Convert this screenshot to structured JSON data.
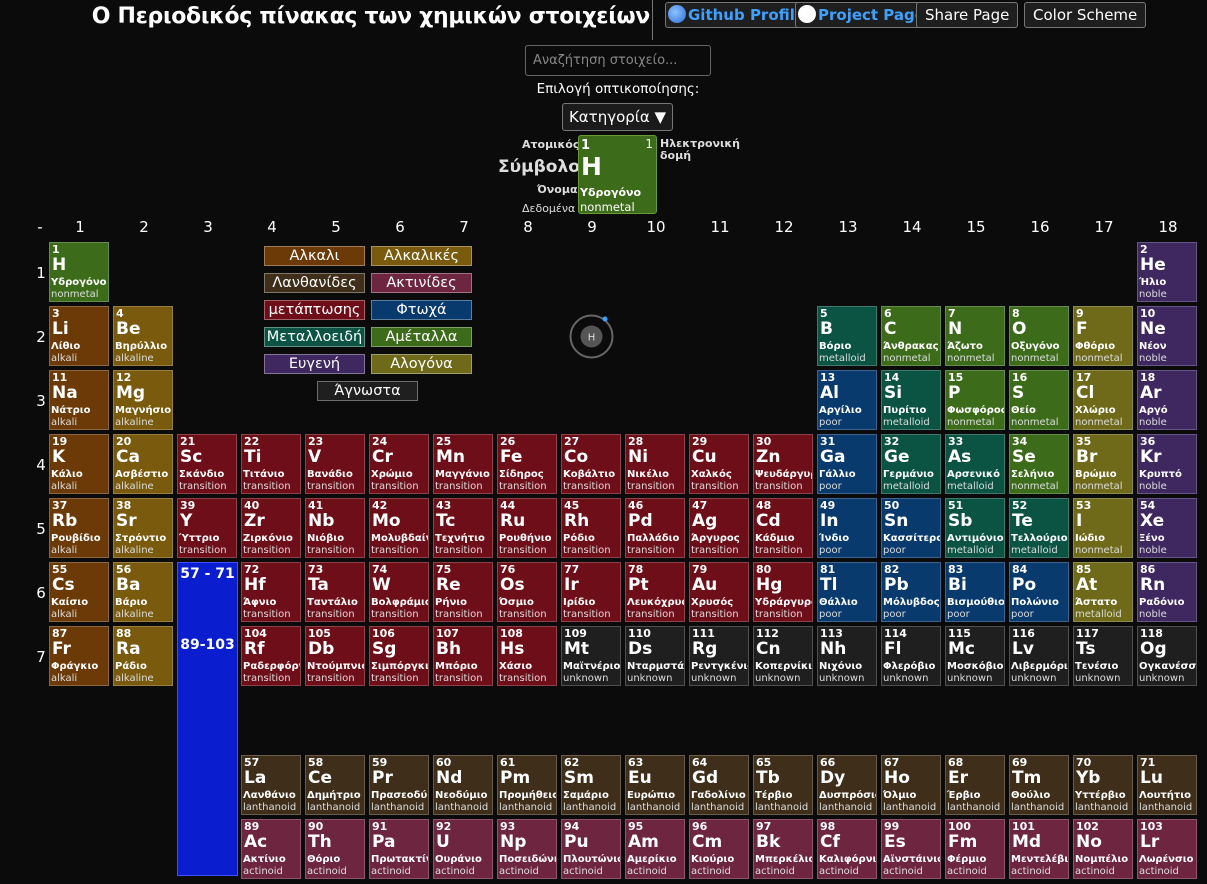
{
  "header": {
    "title": "Ο Περιοδικός πίνακας των χημικών στοιχείων",
    "github_label": "Github Profile",
    "project_label": "Project Page",
    "share_label": "Share Page",
    "scheme_label": "Color Scheme"
  },
  "search": {
    "placeholder": "Αναζήτηση στοιχείο..."
  },
  "viz": {
    "label": "Επιλογή οπτικοποίησης:",
    "selected": "Κατηγορία ▼"
  },
  "legend_key": {
    "atomic_label": "Ατομικός",
    "symbol_label": "Σύμβολο",
    "name_label": "Όνομα",
    "data_label": "Δεδομένα",
    "config_label": "Ηλεκτρονική δομή",
    "number": "1",
    "config_value": "1",
    "symbol": "H",
    "name": "Υδρογόνο",
    "data": "nonmetal"
  },
  "groups": [
    "-",
    "1",
    "2",
    "3",
    "4",
    "5",
    "6",
    "7",
    "8",
    "9",
    "10",
    "11",
    "12",
    "13",
    "14",
    "15",
    "16",
    "17",
    "18"
  ],
  "periods": [
    "1",
    "2",
    "3",
    "4",
    "5",
    "6",
    "7"
  ],
  "fblock": {
    "lanthanide_range": "57 - 71",
    "actinide_range": "89-103"
  },
  "atom_symbol": "H",
  "colors": {
    "alkali": "#6b3a06",
    "alkaline": "#7a5a0c",
    "transition": "#6e0e18",
    "poor": "#083a6e",
    "metalloid": "#0b5443",
    "nonmetal": "#3c6b1a",
    "noble": "#3f2860",
    "lanthanoid": "#3e2e1a",
    "actinoid": "#6e2540",
    "unknown": "#1f1f1f",
    "halogen": "#6e6a1a"
  },
  "categories": [
    {
      "label": "Αλκαλι",
      "key": "alkali"
    },
    {
      "label": "Αλκαλικές",
      "key": "alkaline"
    },
    {
      "label": "Λανθανίδες",
      "key": "lanthanoid"
    },
    {
      "label": "Ακτινίδες",
      "key": "actinoid"
    },
    {
      "label": "μετάπτωσης",
      "key": "transition"
    },
    {
      "label": "Φτωχά",
      "key": "poor"
    },
    {
      "label": "Μεταλλοειδή",
      "key": "metalloid"
    },
    {
      "label": "Αμέταλλα",
      "key": "nonmetal"
    },
    {
      "label": "Ευγενή",
      "key": "noble"
    },
    {
      "label": "Αλογόνα",
      "key": "halogen"
    },
    {
      "label": "Άγνωστα",
      "key": "unknown"
    }
  ],
  "elements": [
    {
      "n": "1",
      "s": "H",
      "name": "Υδρογόνο",
      "cat": "nonmetal",
      "row": 1,
      "col": 1
    },
    {
      "n": "2",
      "s": "He",
      "name": "Ήλιο",
      "cat": "noble",
      "row": 1,
      "col": 18
    },
    {
      "n": "3",
      "s": "Li",
      "name": "Λίθιο",
      "cat": "alkali",
      "row": 2,
      "col": 1
    },
    {
      "n": "4",
      "s": "Be",
      "name": "Βηρύλλιο",
      "cat": "alkaline",
      "row": 2,
      "col": 2
    },
    {
      "n": "5",
      "s": "B",
      "name": "Βόριο",
      "cat": "metalloid",
      "row": 2,
      "col": 13
    },
    {
      "n": "6",
      "s": "C",
      "name": "Άνθρακας",
      "cat": "nonmetal",
      "row": 2,
      "col": 14
    },
    {
      "n": "7",
      "s": "N",
      "name": "Άζωτο",
      "cat": "nonmetal",
      "row": 2,
      "col": 15
    },
    {
      "n": "8",
      "s": "O",
      "name": "Οξυγόνο",
      "cat": "nonmetal",
      "row": 2,
      "col": 16
    },
    {
      "n": "9",
      "s": "F",
      "name": "Φθόριο",
      "cat": "nonmetal",
      "color": "halogen",
      "row": 2,
      "col": 17
    },
    {
      "n": "10",
      "s": "Ne",
      "name": "Νέον",
      "cat": "noble",
      "row": 2,
      "col": 18
    },
    {
      "n": "11",
      "s": "Na",
      "name": "Νάτριο",
      "cat": "alkali",
      "row": 3,
      "col": 1
    },
    {
      "n": "12",
      "s": "Mg",
      "name": "Μαγνήσιο",
      "cat": "alkaline",
      "row": 3,
      "col": 2
    },
    {
      "n": "13",
      "s": "Al",
      "name": "Αργίλιο",
      "cat": "poor",
      "row": 3,
      "col": 13
    },
    {
      "n": "14",
      "s": "Si",
      "name": "Πυρίτιο",
      "cat": "metalloid",
      "row": 3,
      "col": 14
    },
    {
      "n": "15",
      "s": "P",
      "name": "Φωσφόρος",
      "cat": "nonmetal",
      "row": 3,
      "col": 15
    },
    {
      "n": "16",
      "s": "S",
      "name": "Θείο",
      "cat": "nonmetal",
      "row": 3,
      "col": 16
    },
    {
      "n": "17",
      "s": "Cl",
      "name": "Χλώριο",
      "cat": "nonmetal",
      "color": "halogen",
      "row": 3,
      "col": 17
    },
    {
      "n": "18",
      "s": "Ar",
      "name": "Αργό",
      "cat": "noble",
      "row": 3,
      "col": 18
    },
    {
      "n": "19",
      "s": "K",
      "name": "Κάλιο",
      "cat": "alkali",
      "row": 4,
      "col": 1
    },
    {
      "n": "20",
      "s": "Ca",
      "name": "Ασβέστιο",
      "cat": "alkaline",
      "row": 4,
      "col": 2
    },
    {
      "n": "21",
      "s": "Sc",
      "name": "Σκάνδιο",
      "cat": "transition",
      "row": 4,
      "col": 3
    },
    {
      "n": "22",
      "s": "Ti",
      "name": "Τιτάνιο",
      "cat": "transition",
      "row": 4,
      "col": 4
    },
    {
      "n": "23",
      "s": "V",
      "name": "Βανάδιο",
      "cat": "transition",
      "row": 4,
      "col": 5
    },
    {
      "n": "24",
      "s": "Cr",
      "name": "Χρώμιο",
      "cat": "transition",
      "row": 4,
      "col": 6
    },
    {
      "n": "25",
      "s": "Mn",
      "name": "Μαγγάνιο",
      "cat": "transition",
      "row": 4,
      "col": 7
    },
    {
      "n": "26",
      "s": "Fe",
      "name": "Σίδηρος",
      "cat": "transition",
      "row": 4,
      "col": 8
    },
    {
      "n": "27",
      "s": "Co",
      "name": "Κοβάλτιο",
      "cat": "transition",
      "row": 4,
      "col": 9
    },
    {
      "n": "28",
      "s": "Ni",
      "name": "Νικέλιο",
      "cat": "transition",
      "row": 4,
      "col": 10
    },
    {
      "n": "29",
      "s": "Cu",
      "name": "Χαλκός",
      "cat": "transition",
      "row": 4,
      "col": 11
    },
    {
      "n": "30",
      "s": "Zn",
      "name": "Ψευδάργυρος",
      "cat": "transition",
      "row": 4,
      "col": 12
    },
    {
      "n": "31",
      "s": "Ga",
      "name": "Γάλλιο",
      "cat": "poor",
      "row": 4,
      "col": 13
    },
    {
      "n": "32",
      "s": "Ge",
      "name": "Γερμάνιο",
      "cat": "metalloid",
      "row": 4,
      "col": 14
    },
    {
      "n": "33",
      "s": "As",
      "name": "Αρσενικό",
      "cat": "metalloid",
      "row": 4,
      "col": 15
    },
    {
      "n": "34",
      "s": "Se",
      "name": "Σελήνιο",
      "cat": "nonmetal",
      "row": 4,
      "col": 16
    },
    {
      "n": "35",
      "s": "Br",
      "name": "Βρώμιο",
      "cat": "nonmetal",
      "color": "halogen",
      "row": 4,
      "col": 17
    },
    {
      "n": "36",
      "s": "Kr",
      "name": "Κρυπτό",
      "cat": "noble",
      "row": 4,
      "col": 18
    },
    {
      "n": "37",
      "s": "Rb",
      "name": "Ρουβίδιο",
      "cat": "alkali",
      "row": 5,
      "col": 1
    },
    {
      "n": "38",
      "s": "Sr",
      "name": "Στρόντιο",
      "cat": "alkaline",
      "row": 5,
      "col": 2
    },
    {
      "n": "39",
      "s": "Y",
      "name": "Ύττριο",
      "cat": "transition",
      "row": 5,
      "col": 3
    },
    {
      "n": "40",
      "s": "Zr",
      "name": "Ζιρκόνιο",
      "cat": "transition",
      "row": 5,
      "col": 4
    },
    {
      "n": "41",
      "s": "Nb",
      "name": "Νιόβιο",
      "cat": "transition",
      "row": 5,
      "col": 5
    },
    {
      "n": "42",
      "s": "Mo",
      "name": "Μολυβδαίνιο",
      "cat": "transition",
      "row": 5,
      "col": 6
    },
    {
      "n": "43",
      "s": "Tc",
      "name": "Τεχνήτιο",
      "cat": "transition",
      "row": 5,
      "col": 7
    },
    {
      "n": "44",
      "s": "Ru",
      "name": "Ρουθήνιο",
      "cat": "transition",
      "row": 5,
      "col": 8
    },
    {
      "n": "45",
      "s": "Rh",
      "name": "Ρόδιο",
      "cat": "transition",
      "row": 5,
      "col": 9
    },
    {
      "n": "46",
      "s": "Pd",
      "name": "Παλλάδιο",
      "cat": "transition",
      "row": 5,
      "col": 10
    },
    {
      "n": "47",
      "s": "Ag",
      "name": "Άργυρος",
      "cat": "transition",
      "row": 5,
      "col": 11
    },
    {
      "n": "48",
      "s": "Cd",
      "name": "Κάδμιο",
      "cat": "transition",
      "row": 5,
      "col": 12
    },
    {
      "n": "49",
      "s": "In",
      "name": "Ίνδιο",
      "cat": "poor",
      "row": 5,
      "col": 13
    },
    {
      "n": "50",
      "s": "Sn",
      "name": "Κασσίτερος",
      "cat": "poor",
      "row": 5,
      "col": 14
    },
    {
      "n": "51",
      "s": "Sb",
      "name": "Αντιμόνιο",
      "cat": "metalloid",
      "row": 5,
      "col": 15
    },
    {
      "n": "52",
      "s": "Te",
      "name": "Τελλούριο",
      "cat": "metalloid",
      "row": 5,
      "col": 16
    },
    {
      "n": "53",
      "s": "I",
      "name": "Ιώδιο",
      "cat": "nonmetal",
      "color": "halogen",
      "row": 5,
      "col": 17
    },
    {
      "n": "54",
      "s": "Xe",
      "name": "Ξένο",
      "cat": "noble",
      "row": 5,
      "col": 18
    },
    {
      "n": "55",
      "s": "Cs",
      "name": "Καίσιο",
      "cat": "alkali",
      "row": 6,
      "col": 1
    },
    {
      "n": "56",
      "s": "Ba",
      "name": "Βάριο",
      "cat": "alkaline",
      "row": 6,
      "col": 2
    },
    {
      "n": "72",
      "s": "Hf",
      "name": "Άφνιο",
      "cat": "transition",
      "row": 6,
      "col": 4
    },
    {
      "n": "73",
      "s": "Ta",
      "name": "Ταντάλιο",
      "cat": "transition",
      "row": 6,
      "col": 5
    },
    {
      "n": "74",
      "s": "W",
      "name": "Βολφράμιο",
      "cat": "transition",
      "row": 6,
      "col": 6
    },
    {
      "n": "75",
      "s": "Re",
      "name": "Ρήνιο",
      "cat": "transition",
      "row": 6,
      "col": 7
    },
    {
      "n": "76",
      "s": "Os",
      "name": "Όσμιο",
      "cat": "transition",
      "row": 6,
      "col": 8
    },
    {
      "n": "77",
      "s": "Ir",
      "name": "Ιρίδιο",
      "cat": "transition",
      "row": 6,
      "col": 9
    },
    {
      "n": "78",
      "s": "Pt",
      "name": "Λευκόχρυσος",
      "cat": "transition",
      "row": 6,
      "col": 10
    },
    {
      "n": "79",
      "s": "Au",
      "name": "Χρυσός",
      "cat": "transition",
      "row": 6,
      "col": 11
    },
    {
      "n": "80",
      "s": "Hg",
      "name": "Υδράργυρος",
      "cat": "transition",
      "row": 6,
      "col": 12
    },
    {
      "n": "81",
      "s": "Tl",
      "name": "Θάλλιο",
      "cat": "poor",
      "row": 6,
      "col": 13
    },
    {
      "n": "82",
      "s": "Pb",
      "name": "Μόλυβδος",
      "cat": "poor",
      "row": 6,
      "col": 14
    },
    {
      "n": "83",
      "s": "Bi",
      "name": "Βισμούθιο",
      "cat": "poor",
      "row": 6,
      "col": 15
    },
    {
      "n": "84",
      "s": "Po",
      "name": "Πολώνιο",
      "cat": "poor",
      "row": 6,
      "col": 16
    },
    {
      "n": "85",
      "s": "At",
      "name": "Άστατο",
      "cat": "metalloid",
      "color": "halogen",
      "row": 6,
      "col": 17
    },
    {
      "n": "86",
      "s": "Rn",
      "name": "Ραδόνιο",
      "cat": "noble",
      "row": 6,
      "col": 18
    },
    {
      "n": "87",
      "s": "Fr",
      "name": "Φράγκιο",
      "cat": "alkali",
      "row": 7,
      "col": 1
    },
    {
      "n": "88",
      "s": "Ra",
      "name": "Ράδιο",
      "cat": "alkaline",
      "row": 7,
      "col": 2
    },
    {
      "n": "104",
      "s": "Rf",
      "name": "Ραδερφόρντιο",
      "cat": "transition",
      "row": 7,
      "col": 4
    },
    {
      "n": "105",
      "s": "Db",
      "name": "Ντούμπνιο",
      "cat": "transition",
      "row": 7,
      "col": 5
    },
    {
      "n": "106",
      "s": "Sg",
      "name": "Σιμπόργκιο",
      "cat": "transition",
      "row": 7,
      "col": 6
    },
    {
      "n": "107",
      "s": "Bh",
      "name": "Μπόριο",
      "cat": "transition",
      "row": 7,
      "col": 7
    },
    {
      "n": "108",
      "s": "Hs",
      "name": "Χάσιο",
      "cat": "transition",
      "row": 7,
      "col": 8
    },
    {
      "n": "109",
      "s": "Mt",
      "name": "Μαϊτνέριο",
      "cat": "unknown",
      "row": 7,
      "col": 9
    },
    {
      "n": "110",
      "s": "Ds",
      "name": "Νταρμστάντιο",
      "cat": "unknown",
      "row": 7,
      "col": 10
    },
    {
      "n": "111",
      "s": "Rg",
      "name": "Ρεντγκένιο",
      "cat": "unknown",
      "row": 7,
      "col": 11
    },
    {
      "n": "112",
      "s": "Cn",
      "name": "Κοπερνίκιο",
      "cat": "unknown",
      "row": 7,
      "col": 12
    },
    {
      "n": "113",
      "s": "Nh",
      "name": "Νιχόνιο",
      "cat": "unknown",
      "row": 7,
      "col": 13
    },
    {
      "n": "114",
      "s": "Fl",
      "name": "Φλερόβιο",
      "cat": "unknown",
      "row": 7,
      "col": 14
    },
    {
      "n": "115",
      "s": "Mc",
      "name": "Μοσκόβιο",
      "cat": "unknown",
      "row": 7,
      "col": 15
    },
    {
      "n": "116",
      "s": "Lv",
      "name": "Λιβερμόριο",
      "cat": "unknown",
      "row": 7,
      "col": 16
    },
    {
      "n": "117",
      "s": "Ts",
      "name": "Τενέσιο",
      "cat": "unknown",
      "row": 7,
      "col": 17
    },
    {
      "n": "118",
      "s": "Og",
      "name": "Ογκανέσσιο",
      "cat": "unknown",
      "row": 7,
      "col": 18
    },
    {
      "n": "57",
      "s": "La",
      "name": "Λανθάνιο",
      "cat": "lanthanoid",
      "row": 9,
      "col": 4
    },
    {
      "n": "58",
      "s": "Ce",
      "name": "Δημήτριο",
      "cat": "lanthanoid",
      "row": 9,
      "col": 5
    },
    {
      "n": "59",
      "s": "Pr",
      "name": "Πρασεοδύμιο",
      "cat": "lanthanoid",
      "row": 9,
      "col": 6
    },
    {
      "n": "60",
      "s": "Nd",
      "name": "Νεοδύμιο",
      "cat": "lanthanoid",
      "row": 9,
      "col": 7
    },
    {
      "n": "61",
      "s": "Pm",
      "name": "Προμήθειο",
      "cat": "lanthanoid",
      "row": 9,
      "col": 8
    },
    {
      "n": "62",
      "s": "Sm",
      "name": "Σαμάριο",
      "cat": "lanthanoid",
      "row": 9,
      "col": 9
    },
    {
      "n": "63",
      "s": "Eu",
      "name": "Ευρώπιο",
      "cat": "lanthanoid",
      "row": 9,
      "col": 10
    },
    {
      "n": "64",
      "s": "Gd",
      "name": "Γαδολίνιο",
      "cat": "lanthanoid",
      "row": 9,
      "col": 11
    },
    {
      "n": "65",
      "s": "Tb",
      "name": "Τέρβιο",
      "cat": "lanthanoid",
      "row": 9,
      "col": 12
    },
    {
      "n": "66",
      "s": "Dy",
      "name": "Δυσπρόσιο",
      "cat": "lanthanoid",
      "row": 9,
      "col": 13
    },
    {
      "n": "67",
      "s": "Ho",
      "name": "Όλμιο",
      "cat": "lanthanoid",
      "row": 9,
      "col": 14
    },
    {
      "n": "68",
      "s": "Er",
      "name": "Έρβιο",
      "cat": "lanthanoid",
      "row": 9,
      "col": 15
    },
    {
      "n": "69",
      "s": "Tm",
      "name": "Θούλιο",
      "cat": "lanthanoid",
      "row": 9,
      "col": 16
    },
    {
      "n": "70",
      "s": "Yb",
      "name": "Υττέρβιο",
      "cat": "lanthanoid",
      "row": 9,
      "col": 17
    },
    {
      "n": "71",
      "s": "Lu",
      "name": "Λουτήτιο",
      "cat": "lanthanoid",
      "row": 9,
      "col": 18
    },
    {
      "n": "89",
      "s": "Ac",
      "name": "Ακτίνιο",
      "cat": "actinoid",
      "row": 10,
      "col": 4
    },
    {
      "n": "90",
      "s": "Th",
      "name": "Θόριο",
      "cat": "actinoid",
      "row": 10,
      "col": 5
    },
    {
      "n": "91",
      "s": "Pa",
      "name": "Πρωτακτίνιο",
      "cat": "actinoid",
      "row": 10,
      "col": 6
    },
    {
      "n": "92",
      "s": "U",
      "name": "Ουράνιο",
      "cat": "actinoid",
      "row": 10,
      "col": 7
    },
    {
      "n": "93",
      "s": "Np",
      "name": "Ποσειδώνιο",
      "cat": "actinoid",
      "row": 10,
      "col": 8
    },
    {
      "n": "94",
      "s": "Pu",
      "name": "Πλουτώνιο",
      "cat": "actinoid",
      "row": 10,
      "col": 9
    },
    {
      "n": "95",
      "s": "Am",
      "name": "Αμερίκιο",
      "cat": "actinoid",
      "row": 10,
      "col": 10
    },
    {
      "n": "96",
      "s": "Cm",
      "name": "Κιούριο",
      "cat": "actinoid",
      "row": 10,
      "col": 11
    },
    {
      "n": "97",
      "s": "Bk",
      "name": "Μπερκέλιο",
      "cat": "actinoid",
      "row": 10,
      "col": 12
    },
    {
      "n": "98",
      "s": "Cf",
      "name": "Καλιφόρνιο",
      "cat": "actinoid",
      "row": 10,
      "col": 13
    },
    {
      "n": "99",
      "s": "Es",
      "name": "Αϊνστάινιο",
      "cat": "actinoid",
      "row": 10,
      "col": 14
    },
    {
      "n": "100",
      "s": "Fm",
      "name": "Φέρμιο",
      "cat": "actinoid",
      "row": 10,
      "col": 15
    },
    {
      "n": "101",
      "s": "Md",
      "name": "Μεντελέβιο",
      "cat": "actinoid",
      "row": 10,
      "col": 16
    },
    {
      "n": "102",
      "s": "No",
      "name": "Νομπέλιο",
      "cat": "actinoid",
      "row": 10,
      "col": 17
    },
    {
      "n": "103",
      "s": "Lr",
      "name": "Λωρένσιο",
      "cat": "actinoid",
      "row": 10,
      "col": 18
    }
  ]
}
